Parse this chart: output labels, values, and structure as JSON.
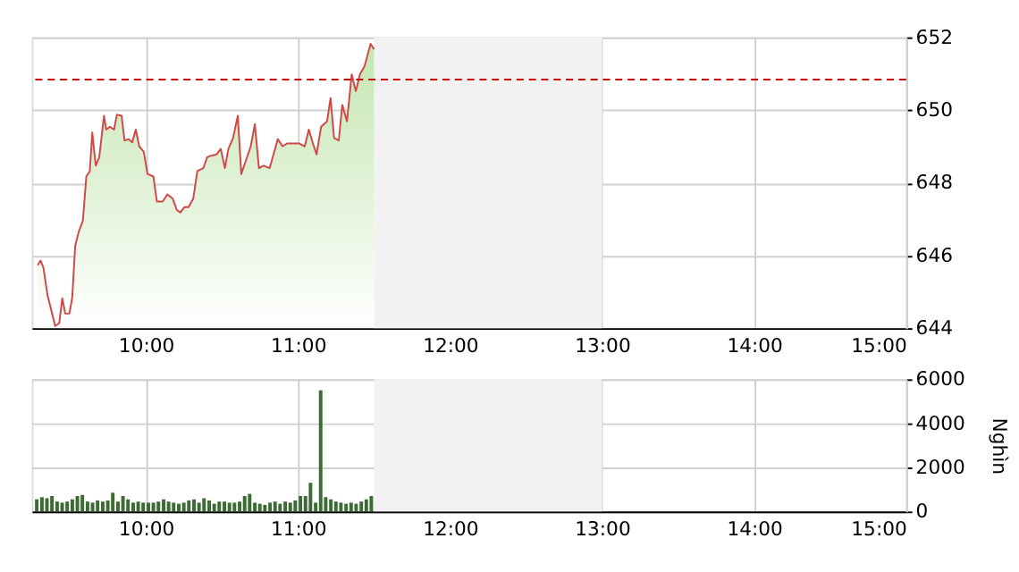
{
  "chart_data": [
    {
      "type": "area",
      "xlim": [
        9.25,
        15
      ],
      "xticks": [
        {
          "value": 10,
          "label": "10:00"
        },
        {
          "value": 11,
          "label": "11:00"
        },
        {
          "value": 12,
          "label": "12:00"
        },
        {
          "value": 13,
          "label": "13:00"
        },
        {
          "value": 14,
          "label": "14:00"
        },
        {
          "value": 15,
          "label": "15:00"
        }
      ],
      "ylim": [
        644,
        652
      ],
      "yticks": [
        644,
        646,
        648,
        650,
        652
      ],
      "grid": true,
      "x": [
        9.289,
        9.308,
        9.327,
        9.354,
        9.377,
        9.404,
        9.431,
        9.451,
        9.47,
        9.497,
        9.516,
        9.536,
        9.559,
        9.586,
        9.609,
        9.632,
        9.648,
        9.671,
        9.694,
        9.725,
        9.74,
        9.764,
        9.791,
        9.81,
        9.841,
        9.86,
        9.887,
        9.911,
        9.934,
        9.957,
        9.987,
        10.011,
        10.05,
        10.073,
        10.111,
        10.142,
        10.177,
        10.204,
        10.227,
        10.254,
        10.281,
        10.312,
        10.339,
        10.378,
        10.404,
        10.435,
        10.466,
        10.493,
        10.52,
        10.543,
        10.574,
        10.605,
        10.628,
        10.659,
        10.69,
        10.717,
        10.744,
        10.775,
        10.814,
        10.845,
        10.868,
        10.899,
        10.93,
        10.968,
        11.007,
        11.045,
        11.072,
        11.099,
        11.123,
        11.153,
        11.192,
        11.215,
        11.238,
        11.269,
        11.292,
        11.323,
        11.354,
        11.381,
        11.408,
        11.439,
        11.478,
        11.501
      ],
      "series": [
        {
          "color": "#d04848",
          "values": [
            645.73,
            645.86,
            645.66,
            644.9,
            644.52,
            644.06,
            644.14,
            644.82,
            644.4,
            644.4,
            644.82,
            646.27,
            646.65,
            646.95,
            648.17,
            648.32,
            649.38,
            648.47,
            648.7,
            649.84,
            649.46,
            649.54,
            649.46,
            649.87,
            649.84,
            649.16,
            649.2,
            649.11,
            649.46,
            649.0,
            648.85,
            648.24,
            648.17,
            647.48,
            647.48,
            647.68,
            647.56,
            647.25,
            647.18,
            647.33,
            647.33,
            647.56,
            648.32,
            648.4,
            648.7,
            648.75,
            648.78,
            648.93,
            648.4,
            648.93,
            649.23,
            649.84,
            648.24,
            648.62,
            649.0,
            649.61,
            648.4,
            648.47,
            648.4,
            648.85,
            649.2,
            649.0,
            649.08,
            649.08,
            649.08,
            649.0,
            649.46,
            649.08,
            648.78,
            649.54,
            649.69,
            650.33,
            649.23,
            649.16,
            650.14,
            649.69,
            650.98,
            650.52,
            650.98,
            651.21,
            651.82,
            651.67
          ]
        }
      ],
      "ref_lines": [
        {
          "axis": "y",
          "value": 650.84,
          "color": "#cc0000",
          "line_style": "dashed"
        }
      ],
      "bands": [
        {
          "axis": "x",
          "from": 11.5,
          "to": 13,
          "color": "#f2f2f2"
        }
      ]
    },
    {
      "type": "bar",
      "ylabel": "Nghìn",
      "xlim": [
        9.25,
        15
      ],
      "xticks": [
        {
          "value": 10,
          "label": "10:00"
        },
        {
          "value": 11,
          "label": "11:00"
        },
        {
          "value": 12,
          "label": "12:00"
        },
        {
          "value": 13,
          "label": "13:00"
        },
        {
          "value": 14,
          "label": "14:00"
        },
        {
          "value": 15,
          "label": "15:00"
        }
      ],
      "ylim": [
        0,
        6000
      ],
      "yticks": [
        0,
        2000,
        4000,
        6000
      ],
      "grid": true,
      "x": [
        9.283,
        9.317,
        9.35,
        9.383,
        9.417,
        9.45,
        9.483,
        9.517,
        9.55,
        9.583,
        9.617,
        9.65,
        9.683,
        9.717,
        9.75,
        9.783,
        9.817,
        9.85,
        9.883,
        9.917,
        9.95,
        9.983,
        10.017,
        10.05,
        10.083,
        10.117,
        10.15,
        10.183,
        10.217,
        10.25,
        10.283,
        10.317,
        10.35,
        10.383,
        10.417,
        10.45,
        10.483,
        10.517,
        10.55,
        10.583,
        10.617,
        10.65,
        10.683,
        10.717,
        10.75,
        10.783,
        10.817,
        10.85,
        10.883,
        10.917,
        10.95,
        10.983,
        11.017,
        11.05,
        11.083,
        11.117,
        11.15,
        11.183,
        11.217,
        11.25,
        11.283,
        11.317,
        11.35,
        11.383,
        11.417,
        11.45,
        11.483
      ],
      "series": [
        {
          "color": "#3d6b35",
          "values": [
            550,
            650,
            600,
            700,
            450,
            400,
            450,
            550,
            700,
            750,
            450,
            400,
            500,
            450,
            500,
            850,
            450,
            700,
            550,
            400,
            450,
            400,
            400,
            400,
            450,
            550,
            450,
            400,
            350,
            400,
            500,
            550,
            400,
            600,
            500,
            350,
            450,
            450,
            400,
            400,
            450,
            700,
            800,
            400,
            350,
            300,
            400,
            450,
            350,
            450,
            400,
            500,
            700,
            700,
            1300,
            400,
            5500,
            650,
            550,
            450,
            400,
            350,
            400,
            350,
            450,
            550,
            700
          ]
        }
      ],
      "bands": [
        {
          "axis": "x",
          "from": 11.5,
          "to": 13,
          "color": "#f2f2f2"
        }
      ]
    }
  ]
}
